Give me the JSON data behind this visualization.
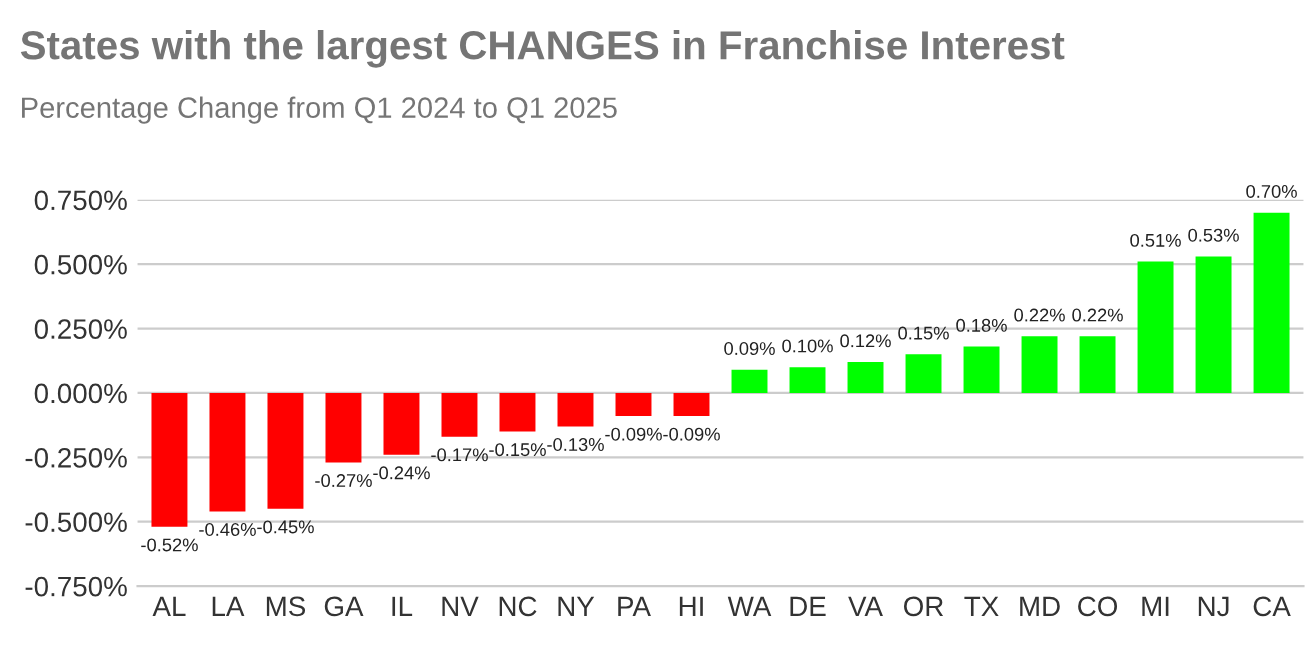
{
  "chart_data": {
    "type": "bar",
    "title": "States with the largest CHANGES in Franchise Interest",
    "subtitle": "Percentage Change from Q1 2024 to Q1 2025",
    "categories": [
      "AL",
      "LA",
      "MS",
      "GA",
      "IL",
      "NV",
      "NC",
      "NY",
      "PA",
      "HI",
      "WA",
      "DE",
      "VA",
      "OR",
      "TX",
      "MD",
      "CO",
      "MI",
      "NJ",
      "CA"
    ],
    "values": [
      -0.52,
      -0.46,
      -0.45,
      -0.27,
      -0.24,
      -0.17,
      -0.15,
      -0.13,
      -0.09,
      -0.09,
      0.09,
      0.1,
      0.12,
      0.15,
      0.18,
      0.22,
      0.22,
      0.51,
      0.53,
      0.7
    ],
    "value_labels": [
      "-0.52%",
      "-0.46%",
      "-0.45%",
      "-0.27%",
      "-0.24%",
      "-0.17%",
      "-0.15%",
      "-0.13%",
      "-0.09%",
      "-0.09%",
      "0.09%",
      "0.10%",
      "0.12%",
      "0.15%",
      "0.18%",
      "0.22%",
      "0.22%",
      "0.51%",
      "0.53%",
      "0.70%"
    ],
    "colors": [
      "#ff0000",
      "#ff0000",
      "#ff0000",
      "#ff0000",
      "#ff0000",
      "#ff0000",
      "#ff0000",
      "#ff0000",
      "#ff0000",
      "#ff0000",
      "#00ff00",
      "#00ff00",
      "#00ff00",
      "#00ff00",
      "#00ff00",
      "#00ff00",
      "#00ff00",
      "#00ff00",
      "#00ff00",
      "#00ff00"
    ],
    "ylim": [
      -0.75,
      0.75
    ],
    "yticks": [
      {
        "value": -0.75,
        "label": "-0.750%"
      },
      {
        "value": -0.5,
        "label": "-0.500%"
      },
      {
        "value": -0.25,
        "label": "-0.250%"
      },
      {
        "value": 0,
        "label": "0.000%"
      },
      {
        "value": 0.25,
        "label": "0.250%"
      },
      {
        "value": 0.5,
        "label": "0.500%"
      },
      {
        "value": 0.75,
        "label": "0.750%"
      }
    ],
    "grid": "y",
    "legend": false
  }
}
